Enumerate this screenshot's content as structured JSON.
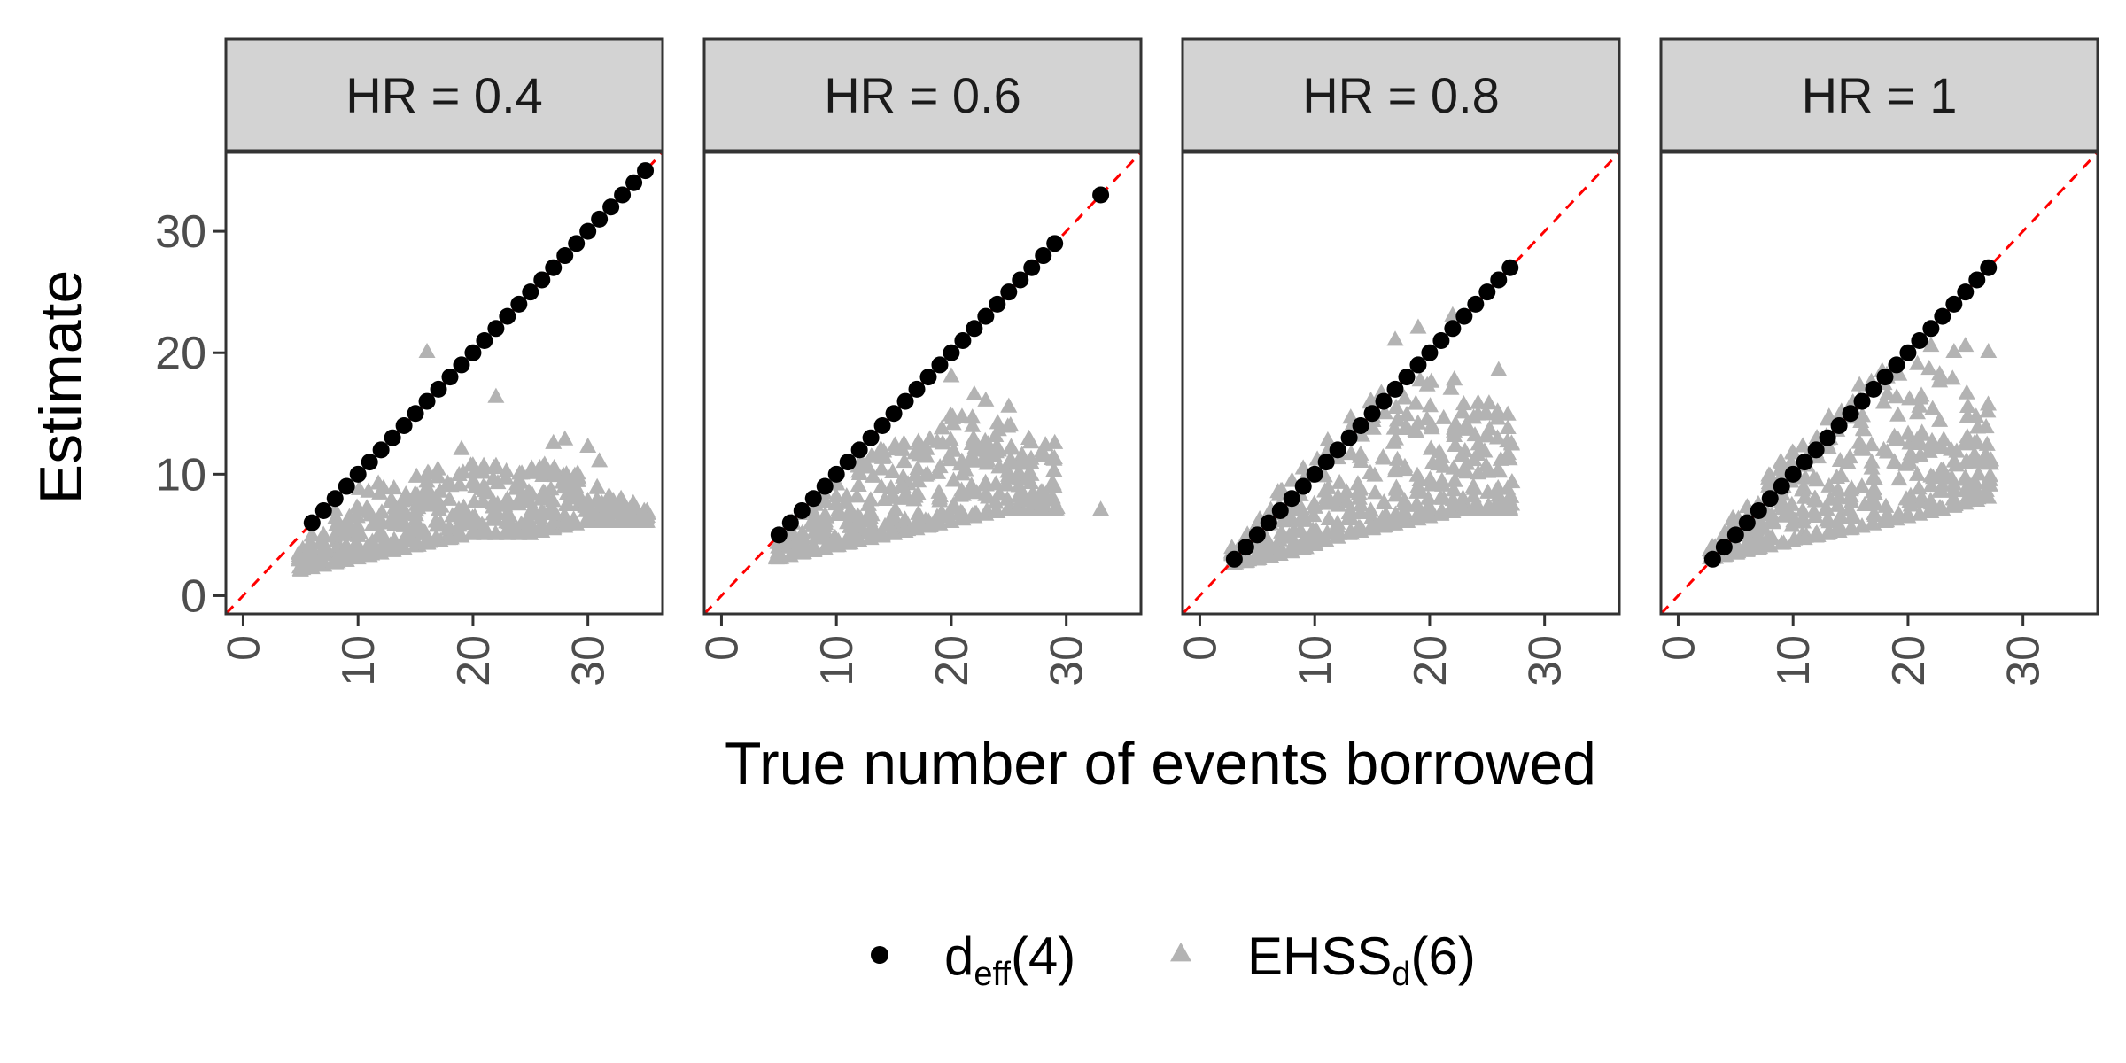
{
  "chart_data": {
    "type": "scatter",
    "facet_variable": "HR",
    "facets": [
      {
        "label": "HR = 0.4",
        "deff_x_range": [
          6,
          35
        ],
        "deff_extra_points": [],
        "ehss_x_range": [
          5,
          35
        ],
        "ehss_bands": [
          {
            "x": 5,
            "lo": 2,
            "hi": 4
          },
          {
            "x": 10,
            "lo": 3,
            "hi": 9
          },
          {
            "x": 15,
            "lo": 4,
            "hi": 10
          },
          {
            "x": 20,
            "lo": 5,
            "hi": 11
          },
          {
            "x": 25,
            "lo": 5,
            "hi": 11
          },
          {
            "x": 30,
            "lo": 6,
            "hi": 10
          },
          {
            "x": 35,
            "lo": 6,
            "hi": 7
          }
        ],
        "ehss_outliers": [
          [
            16,
            20
          ],
          [
            22,
            16.3
          ],
          [
            19,
            12
          ],
          [
            27,
            12.5
          ],
          [
            28,
            12.8
          ],
          [
            30,
            12.2
          ],
          [
            31,
            11
          ]
        ]
      },
      {
        "label": "HR = 0.6",
        "deff_x_range": [
          5,
          29
        ],
        "deff_extra_points": [
          [
            33,
            33
          ]
        ],
        "ehss_x_range": [
          5,
          29
        ],
        "ehss_bands": [
          {
            "x": 5,
            "lo": 3,
            "hi": 5
          },
          {
            "x": 10,
            "lo": 4,
            "hi": 10
          },
          {
            "x": 15,
            "lo": 5,
            "hi": 13
          },
          {
            "x": 20,
            "lo": 6,
            "hi": 15
          },
          {
            "x": 25,
            "lo": 7,
            "hi": 14
          },
          {
            "x": 29,
            "lo": 7,
            "hi": 12
          }
        ],
        "ehss_outliers": [
          [
            20,
            18
          ],
          [
            22,
            16.5
          ],
          [
            23,
            16
          ],
          [
            25,
            15.5
          ],
          [
            29,
            12.5
          ],
          [
            33,
            7
          ]
        ]
      },
      {
        "label": "HR = 0.8",
        "deff_x_range": [
          3,
          27
        ],
        "deff_extra_points": [],
        "ehss_x_range": [
          3,
          27
        ],
        "ehss_bands": [
          {
            "x": 3,
            "lo": 2.5,
            "hi": 4
          },
          {
            "x": 8,
            "lo": 3.5,
            "hi": 10
          },
          {
            "x": 13,
            "lo": 5,
            "hi": 15
          },
          {
            "x": 18,
            "lo": 6,
            "hi": 18
          },
          {
            "x": 23,
            "lo": 7,
            "hi": 18
          },
          {
            "x": 27,
            "lo": 7,
            "hi": 15
          }
        ],
        "ehss_outliers": [
          [
            17,
            21
          ],
          [
            19,
            22
          ],
          [
            22,
            23
          ],
          [
            26,
            18.5
          ],
          [
            27,
            7.5
          ]
        ]
      },
      {
        "label": "HR = 1",
        "deff_x_range": [
          3,
          27
        ],
        "deff_extra_points": [],
        "ehss_x_range": [
          3,
          27
        ],
        "ehss_bands": [
          {
            "x": 3,
            "lo": 3,
            "hi": 4
          },
          {
            "x": 8,
            "lo": 4,
            "hi": 10
          },
          {
            "x": 13,
            "lo": 5,
            "hi": 15
          },
          {
            "x": 18,
            "lo": 6,
            "hi": 19
          },
          {
            "x": 23,
            "lo": 7,
            "hi": 19
          },
          {
            "x": 27,
            "lo": 8,
            "hi": 16
          }
        ],
        "ehss_outliers": [
          [
            22,
            20.5
          ],
          [
            24,
            20
          ],
          [
            25,
            20.5
          ],
          [
            27,
            20
          ],
          [
            23,
            9
          ]
        ]
      }
    ],
    "xlabel": "True number of events borrowed",
    "ylabel": "Estimate",
    "xlim": [
      -1.5,
      36.5
    ],
    "ylim": [
      -1.5,
      36.5
    ],
    "x_ticks": [
      "0",
      "10",
      "20",
      "30"
    ],
    "y_ticks": [
      "0",
      "10",
      "20",
      "30"
    ],
    "reference_line": "identity, dashed",
    "series": [
      {
        "key": "deff",
        "name": "d",
        "subscript": "eff",
        "suffix": "(4)",
        "marker": "circle",
        "color": "#000000"
      },
      {
        "key": "ehss",
        "name": "EHSS",
        "subscript": "d",
        "suffix": "(6)",
        "marker": "triangle",
        "color": "#b3b3b3"
      }
    ],
    "reference_line_color": "#ff0000",
    "strip_fill": "#d3d3d3",
    "legend_position": "bottom",
    "grid": false
  }
}
